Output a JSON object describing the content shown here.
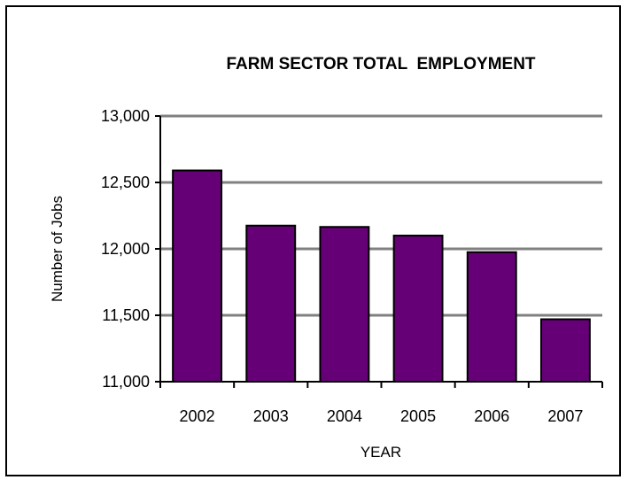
{
  "chart_data": {
    "type": "bar",
    "title": "FARM SECTOR TOTAL  EMPLOYMENT",
    "xlabel": "YEAR",
    "ylabel": "Number of Jobs",
    "categories": [
      "2002",
      "2003",
      "2004",
      "2005",
      "2006",
      "2007"
    ],
    "values": [
      12590,
      12175,
      12165,
      12100,
      11975,
      11470
    ],
    "ylim": [
      11000,
      13000
    ],
    "yticks": [
      11000,
      11500,
      12000,
      12500,
      13000
    ],
    "ytick_labels": [
      "11,000",
      "11,500",
      "12,000",
      "12,500",
      "13,000"
    ],
    "grid": true,
    "legend": "none",
    "colors": {
      "bar_fill": "#660077",
      "bar_stroke": "#000000",
      "grid": "#808080",
      "axis": "#000000"
    }
  }
}
